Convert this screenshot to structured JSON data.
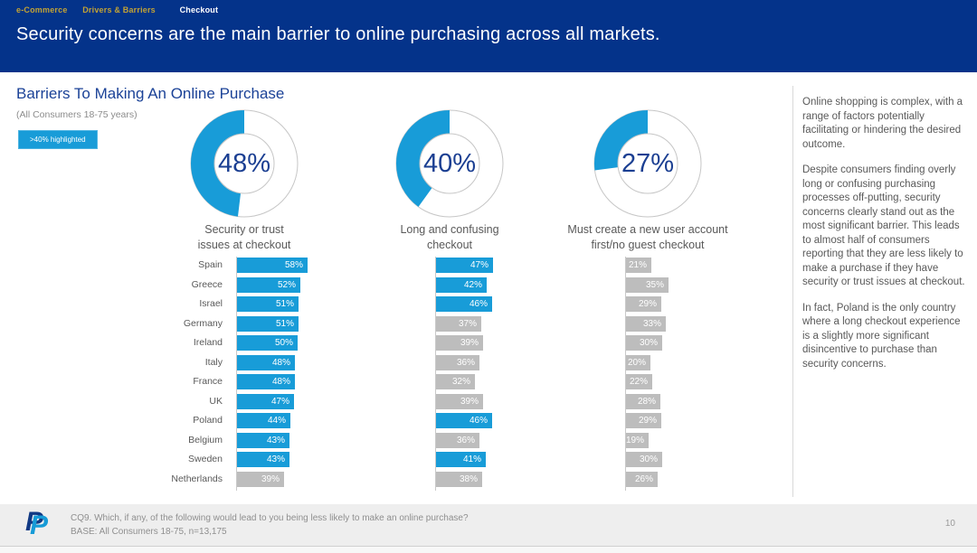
{
  "header": {
    "breadcrumb": [
      {
        "label": "e-Commerce"
      },
      {
        "label": "Drivers & Barriers"
      },
      {
        "label": "Checkout"
      }
    ],
    "title": "Security concerns are the main barrier to online purchasing across all markets."
  },
  "section": {
    "title": "Barriers To Making An Online Purchase",
    "subtitle": "(All Consumers 18-75 years)",
    "badge": ">40% highlighted"
  },
  "colors": {
    "header_navy": "#04338a",
    "accent_blue": "#189cd8",
    "bar_gray": "#bdbdbd",
    "pct_navy": "#1b3f92",
    "text_gray": "#595959",
    "breadcrumb_gold": "#c2a335"
  },
  "chart_data": {
    "type": "bar",
    "categories": [
      "Spain",
      "Greece",
      "Israel",
      "Germany",
      "Ireland",
      "Italy",
      "France",
      "UK",
      "Poland",
      "Belgium",
      "Sweden",
      "Netherlands"
    ],
    "highlight_rule": ">40% highlighted",
    "highlight_threshold": 40,
    "xlim": [
      0,
      60
    ],
    "series": [
      {
        "name": "Security or trust issues at checkout",
        "label_lines": [
          "Security or trust",
          "issues at checkout"
        ],
        "donut_pct": 48,
        "values": [
          58,
          52,
          51,
          51,
          50,
          48,
          48,
          47,
          44,
          43,
          43,
          39
        ]
      },
      {
        "name": "Long and confusing checkout",
        "label_lines": [
          "Long and confusing",
          "checkout"
        ],
        "donut_pct": 40,
        "values": [
          47,
          42,
          46,
          37,
          39,
          36,
          32,
          39,
          46,
          36,
          41,
          38
        ]
      },
      {
        "name": "Must create a new user account first/no guest checkout",
        "label_lines": [
          "Must create a new user account",
          "first/no guest checkout"
        ],
        "donut_pct": 27,
        "values": [
          21,
          35,
          29,
          33,
          30,
          20,
          22,
          28,
          29,
          19,
          30,
          26
        ]
      }
    ]
  },
  "side_panel": {
    "paragraphs": [
      "Online shopping is complex, with a range of factors potentially facilitating or hindering the desired outcome.",
      "Despite consumers finding overly long or confusing purchasing processes off-putting, security concerns clearly stand out as the most significant barrier. This leads to almost half of consumers reporting that they are less likely to make a purchase if they have security or trust issues at checkout.",
      "In fact, Poland is the only country where a long checkout experience is a slightly more significant disincentive to purchase than security concerns."
    ]
  },
  "footer": {
    "logo_letter": "P",
    "question": "CQ9. Which, if any, of the following would lead to you being less likely to make an online purchase?",
    "base": "BASE: All Consumers 18-75, n=13,175",
    "page_number": "10"
  }
}
